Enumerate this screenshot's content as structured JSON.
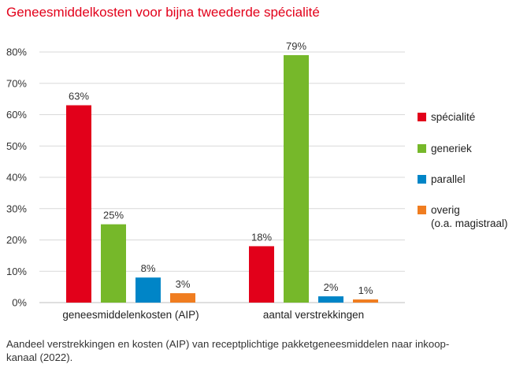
{
  "chart_data": {
    "type": "bar",
    "title": "Geneesmiddelkosten voor bijna tweederde spécialité",
    "categories": [
      "geneesmiddelenkosten (AIP)",
      "aantal verstrekkingen"
    ],
    "series": [
      {
        "name": "spécialité",
        "color": "#e2001a",
        "values": [
          63,
          18
        ],
        "labels": [
          "63%",
          "18%"
        ]
      },
      {
        "name": "generiek",
        "color": "#76b82a",
        "values": [
          25,
          79
        ],
        "labels": [
          "25%",
          "79%"
        ]
      },
      {
        "name": "parallel",
        "color": "#0085c7",
        "values": [
          8,
          2
        ],
        "labels": [
          "8%",
          "2%"
        ]
      },
      {
        "name": "overig\n(o.a. magistraal)",
        "color": "#f07d20",
        "values": [
          3,
          1
        ],
        "labels": [
          "3%",
          "1%"
        ]
      }
    ],
    "legend_labels": [
      [
        "spécialité"
      ],
      [
        "generiek"
      ],
      [
        "parallel"
      ],
      [
        "overig",
        "(o.a. magistraal)"
      ]
    ],
    "yticks": [
      "0%",
      "10%",
      "20%",
      "30%",
      "40%",
      "50%",
      "60%",
      "70%",
      "80%"
    ],
    "ylim": [
      0,
      80
    ],
    "xlabel": "",
    "ylabel": "",
    "grid": true,
    "legend_position": "right",
    "caption": "Aandeel verstrekkingen en kosten (AIP) van receptplichtige pakketgeneesmiddelen naar inkoop-kanaal (2022).",
    "caption_lines": [
      "Aandeel verstrekkingen en kosten (AIP) van receptplichtige pakketgeneesmiddelen naar inkoop-",
      "kanaal (2022)."
    ]
  }
}
